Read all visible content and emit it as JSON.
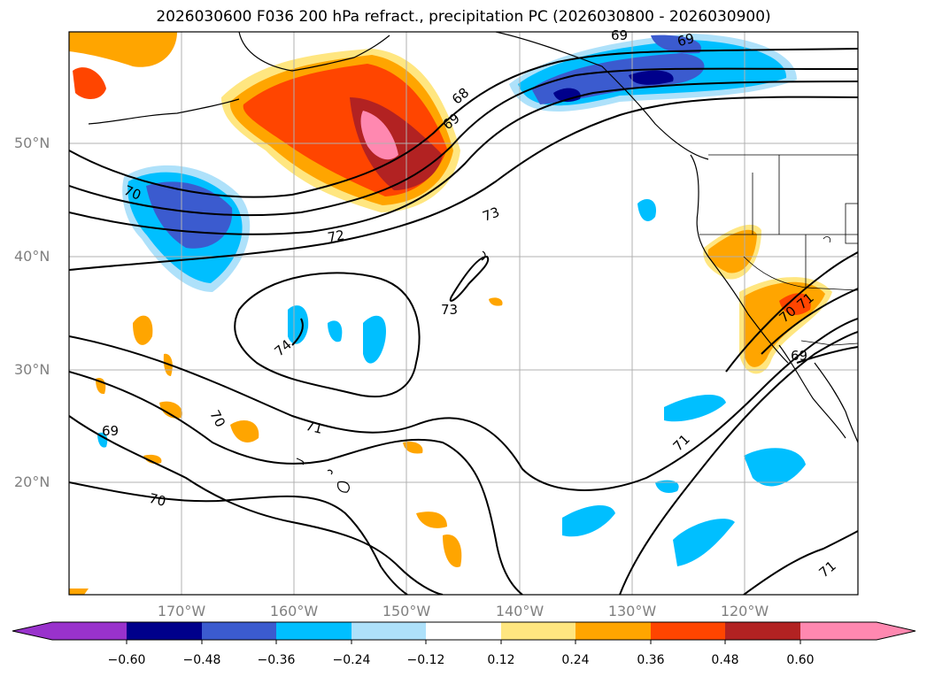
{
  "title": "2026030600 F036 200 hPa refract., precipitation PC (2026030800 - 2026030900)",
  "lat_labels": [
    "50°N",
    "40°N",
    "30°N",
    "20°N"
  ],
  "lon_labels": [
    "170°W",
    "160°W",
    "150°W",
    "140°W",
    "130°W",
    "120°W"
  ],
  "contour_labels": [
    "68",
    "69",
    "69",
    "69",
    "70",
    "70",
    "70",
    "70",
    "71",
    "71",
    "71",
    "71",
    "72",
    "73",
    "73",
    "74",
    "69"
  ],
  "colorbar": {
    "ticks": [
      "−0.60",
      "−0.48",
      "−0.36",
      "−0.24",
      "−0.12",
      "0.12",
      "0.24",
      "0.36",
      "0.48",
      "0.60"
    ],
    "colors": [
      "#9932cc",
      "#00008b",
      "#3b5bcf",
      "#00bfff",
      "#aee1fa",
      "#ffffff",
      "#ffe680",
      "#ffa500",
      "#ff4500",
      "#b22222",
      "#ff88b0"
    ]
  },
  "colors": {
    "coast": "#000000",
    "contour": "#000000",
    "grid": "#b0b0b0",
    "label": "#808080"
  }
}
